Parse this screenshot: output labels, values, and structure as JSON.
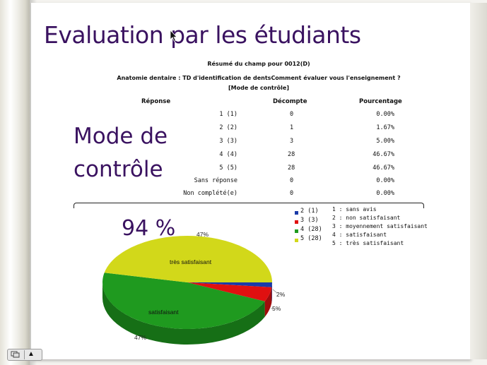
{
  "slide": {
    "title": "Evaluation par les étudiants",
    "summary_title": "Résumé du champ pour 0012(D)",
    "question": "Anatomie dentaire : TD d'identification  de dentsComment évaluer vous l'enseignement ?",
    "subtitle": "[Mode de contrôle]",
    "side_label_line1": "Mode de",
    "side_label_line2": "contrôle",
    "big_percent": "94 %"
  },
  "table": {
    "headers": {
      "reponse": "Réponse",
      "decompte": "Décompte",
      "pourcentage": "Pourcentage"
    },
    "rows": [
      {
        "reponse": "1 (1)",
        "decompte": "0",
        "pourcentage": "0.00%"
      },
      {
        "reponse": "2 (2)",
        "decompte": "1",
        "pourcentage": "1.67%"
      },
      {
        "reponse": "3 (3)",
        "decompte": "3",
        "pourcentage": "5.00%"
      },
      {
        "reponse": "4 (4)",
        "decompte": "28",
        "pourcentage": "46.67%"
      },
      {
        "reponse": "5 (5)",
        "decompte": "28",
        "pourcentage": "46.67%"
      },
      {
        "reponse": "Sans réponse",
        "decompte": "0",
        "pourcentage": "0.00%"
      },
      {
        "reponse": "Non complété(e)",
        "decompte": "0",
        "pourcentage": "0.00%"
      }
    ]
  },
  "chart_data": {
    "type": "pie",
    "categories": [
      "2 (1)",
      "3 (3)",
      "4 (28)",
      "5 (28)"
    ],
    "values": [
      1,
      3,
      28,
      28
    ],
    "colors": [
      "#1a3aa8",
      "#e01010",
      "#1f9a1f",
      "#d2d81a"
    ],
    "slice_labels": [
      "",
      "",
      "satisfaisant",
      "très satisfaisant"
    ],
    "percent_labels": [
      "2%",
      "5%",
      "47%",
      "47%"
    ],
    "legend_notes": [
      "1 : sans avis",
      "2 : non satisfaisant",
      "3 : moyennement satisfaisant",
      "4 : satisfaisant",
      "5 : très satisfaisant"
    ]
  },
  "controls": {
    "menu_icon": "slides-icon",
    "prev_icon": "up-triangle-icon",
    "prev_glyph": "▲"
  }
}
